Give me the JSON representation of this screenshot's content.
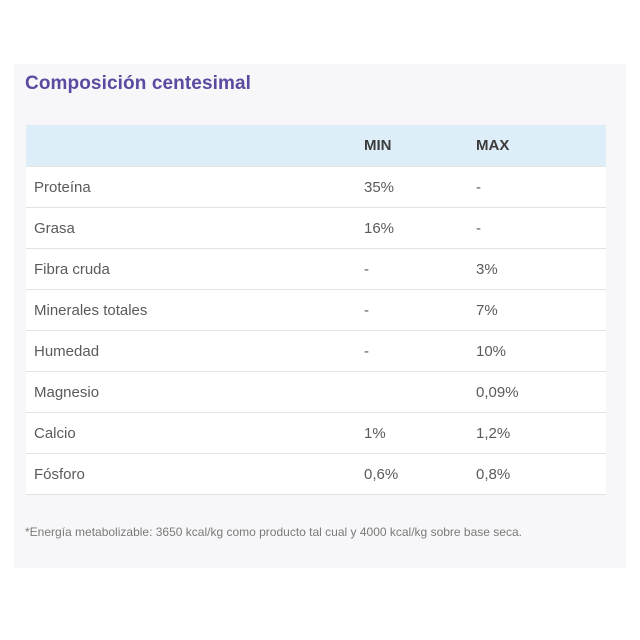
{
  "title": "Composición centesimal",
  "table": {
    "headers": {
      "name": "",
      "min": "MIN",
      "max": "MAX"
    },
    "rows": [
      {
        "name": "Proteína",
        "min": "35%",
        "max": "-"
      },
      {
        "name": "Grasa",
        "min": "16%",
        "max": "-"
      },
      {
        "name": "Fibra cruda",
        "min": "-",
        "max": "3%"
      },
      {
        "name": "Minerales totales",
        "min": "-",
        "max": "7%"
      },
      {
        "name": "Humedad",
        "min": "-",
        "max": "10%"
      },
      {
        "name": "Magnesio",
        "min": "",
        "max": "0,09%"
      },
      {
        "name": "Calcio",
        "min": "1%",
        "max": "1,2%"
      },
      {
        "name": "Fósforo",
        "min": "0,6%",
        "max": "0,8%"
      }
    ]
  },
  "footnote": "*Energía metabolizable: 3650 kcal/kg como producto tal cual y 4000 kcal/kg sobre base seca.",
  "colors": {
    "title": "#5b4a9f",
    "header_bg": "#deeef9"
  }
}
